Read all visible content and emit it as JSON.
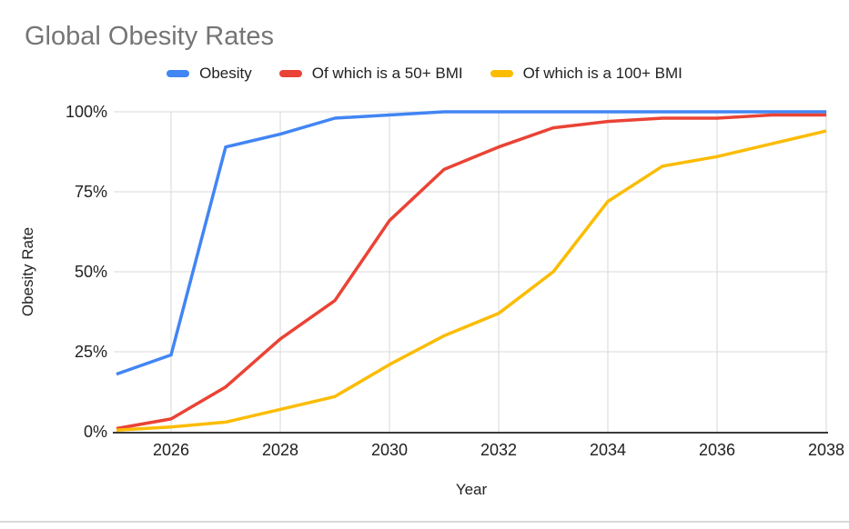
{
  "title": "Global Obesity Rates",
  "colors": {
    "series_blue": "#4285F4",
    "series_red": "#EA4335",
    "series_yellow": "#FBBC04",
    "gridline": "#E0E0E0",
    "axis_line": "#3A3A3A",
    "title_text": "#757575",
    "label_text": "#212121",
    "bottom_rule": "#D9D9D9"
  },
  "chart_data": {
    "type": "line",
    "title": "Global Obesity Rates",
    "xlabel": "Year",
    "ylabel": "Obesity Rate",
    "x": [
      2025,
      2026,
      2027,
      2028,
      2029,
      2030,
      2031,
      2032,
      2033,
      2034,
      2035,
      2036,
      2037,
      2038
    ],
    "xlim": [
      2025,
      2038
    ],
    "ylim": [
      0,
      100
    ],
    "grid": true,
    "legend_position": "top",
    "x_tick_values": [
      2026,
      2028,
      2030,
      2032,
      2034,
      2036,
      2038
    ],
    "x_tick_labels": [
      "2026",
      "2028",
      "2030",
      "2032",
      "2034",
      "2036",
      "2038"
    ],
    "y_tick_values": [
      0,
      25,
      50,
      75,
      100
    ],
    "y_tick_labels": [
      "0%",
      "25%",
      "50%",
      "75%",
      "100%"
    ],
    "series": [
      {
        "name": "Obesity",
        "color": "#4285F4",
        "values": [
          18,
          24,
          89,
          93,
          98,
          99,
          100,
          100,
          100,
          100,
          100,
          100,
          100,
          100
        ]
      },
      {
        "name": "Of which is a 50+ BMI",
        "color": "#EA4335",
        "values": [
          1,
          4,
          14,
          29,
          41,
          66,
          82,
          89,
          95,
          97,
          98,
          98,
          99,
          99
        ]
      },
      {
        "name": "Of which is a 100+ BMI",
        "color": "#FBBC04",
        "values": [
          0.5,
          1.5,
          3,
          7,
          11,
          21,
          30,
          37,
          50,
          72,
          83,
          86,
          90,
          94
        ]
      }
    ]
  }
}
